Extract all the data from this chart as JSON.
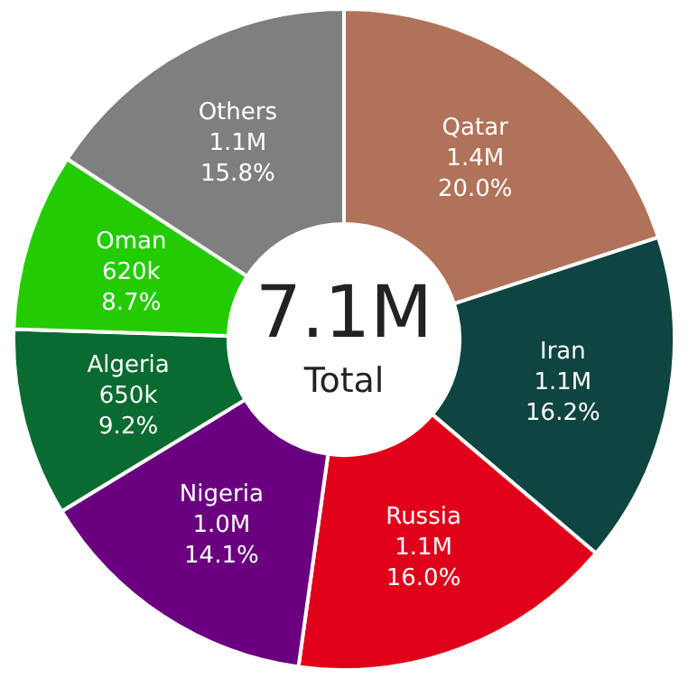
{
  "chart_data": {
    "type": "donut",
    "categories": [
      "Qatar",
      "Iran",
      "Russia",
      "Nigeria",
      "Algeria",
      "Oman",
      "Others"
    ],
    "values": [
      20.0,
      16.2,
      16.0,
      14.1,
      9.2,
      8.7,
      15.8
    ],
    "value_labels": [
      "1.4M\n20.0%",
      "1.1M\n16.2%",
      "1.1M\n16.0%",
      "1.0M\n14.1%",
      "650k\n9.2%",
      "620k\n8.7%",
      "1.1M\n15.8%"
    ],
    "colors": [
      "#b0735a",
      "#0f4540",
      "#e0001a",
      "#6a0080",
      "#0a6b30",
      "#22cc00",
      "#7f7f7f"
    ],
    "annotations": [
      "7.1M",
      "Total"
    ],
    "legend": false
  }
}
